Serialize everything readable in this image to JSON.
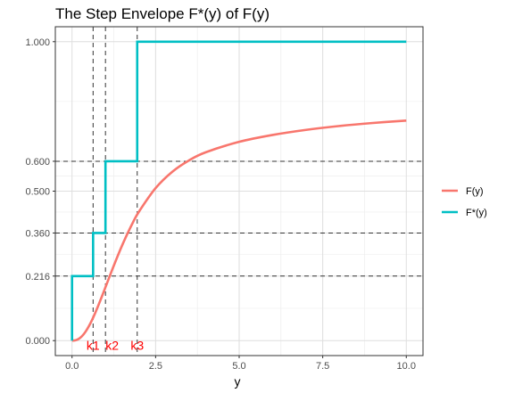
{
  "chart_data": {
    "type": "line",
    "title": "The Step Envelope F*(y) of F(y)",
    "xlabel": "y",
    "ylabel": "",
    "xlim": [
      -0.5,
      10.5
    ],
    "ylim": [
      -0.05,
      1.05
    ],
    "x_ticks": [
      0,
      2.5,
      5,
      7.5,
      10
    ],
    "x_tick_labels": [
      "0.0",
      "2.5",
      "5.0",
      "7.5",
      "10.0"
    ],
    "y_ticks": [
      0,
      0.216,
      0.36,
      0.5,
      0.6,
      1.0
    ],
    "y_tick_labels": [
      "0.000",
      "0.216",
      "0.360",
      "0.500",
      "0.600",
      "1.000"
    ],
    "grid": true,
    "legend_position": "right",
    "series": [
      {
        "name": "F(y)",
        "color": "#F8766D",
        "kind": "curve",
        "x": [
          0,
          0.1,
          0.2,
          0.3,
          0.4,
          0.5,
          0.6,
          0.7,
          0.8,
          0.9,
          1.0,
          1.2,
          1.4,
          1.6,
          1.8,
          2.0,
          2.5,
          3.0,
          3.5,
          4.0,
          5.0,
          6.0,
          7.0,
          8.0,
          9.0,
          10.0
        ],
        "y": [
          0.0,
          0.001,
          0.0058,
          0.0152,
          0.0292,
          0.0475,
          0.0695,
          0.0944,
          0.1214,
          0.1497,
          0.1786,
          0.2368,
          0.2926,
          0.344,
          0.3904,
          0.431,
          0.5102,
          0.565,
          0.603,
          0.63,
          0.665,
          0.688,
          0.705,
          0.718,
          0.728,
          0.736
        ]
      },
      {
        "name": "F*(y)",
        "color": "#00BFC4",
        "kind": "step",
        "x": [
          0,
          0,
          0.63,
          0.63,
          1.0,
          1.0,
          1.95,
          1.95,
          10.0
        ],
        "y": [
          0.0,
          0.216,
          0.216,
          0.36,
          0.36,
          0.6,
          0.6,
          1.0,
          1.0
        ]
      }
    ],
    "reference_lines": {
      "horizontal": [
        0.216,
        0.36,
        0.6
      ],
      "vertical": [
        0.63,
        1.0,
        1.95
      ]
    },
    "annotations": [
      {
        "text": "k1",
        "x": 0.63
      },
      {
        "text": "k2",
        "x": 1.2
      },
      {
        "text": "k3",
        "x": 1.95
      }
    ]
  }
}
